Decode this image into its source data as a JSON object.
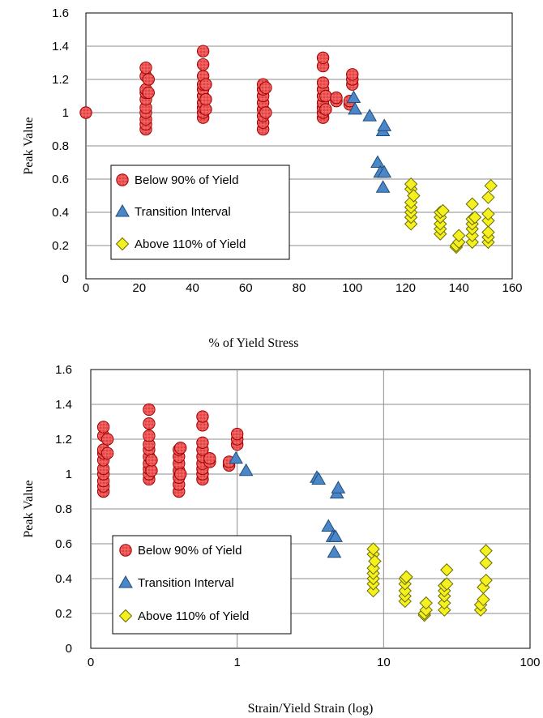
{
  "colors": {
    "below": "#e84040",
    "below_stroke": "#a00000",
    "transition": "#4a86c8",
    "transition_stroke": "#1f4e79",
    "above": "#f5f020",
    "above_stroke": "#6b6b00"
  },
  "chart_data": [
    {
      "type": "scatter",
      "xlabel": "% of Yield Stress",
      "ylabel": "Peak Value",
      "xlim": [
        0,
        160
      ],
      "ylim": [
        0,
        1.6
      ],
      "xticks": [
        "0",
        "20",
        "40",
        "60",
        "80",
        "100",
        "120",
        "140",
        "160"
      ],
      "yticks": [
        "0",
        "0.2",
        "0.4",
        "0.6",
        "0.8",
        "1",
        "1.2",
        "1.4",
        "1.6"
      ],
      "grid": "horizontal",
      "legend_position": "lower-left",
      "series": [
        {
          "name": "Below 90% of Yield",
          "marker": "circle",
          "points": [
            [
              0,
              1.0
            ],
            [
              22.5,
              0.9
            ],
            [
              22.5,
              0.93
            ],
            [
              22.5,
              0.96
            ],
            [
              22.5,
              1.0
            ],
            [
              22.5,
              1.03
            ],
            [
              22.5,
              1.08
            ],
            [
              22.5,
              1.12
            ],
            [
              22.5,
              1.14
            ],
            [
              22.5,
              1.22
            ],
            [
              22.5,
              1.27
            ],
            [
              23.5,
              1.12
            ],
            [
              23.5,
              1.2
            ],
            [
              44,
              0.97
            ],
            [
              44,
              1.0
            ],
            [
              44,
              1.03
            ],
            [
              44,
              1.06
            ],
            [
              44,
              1.1
            ],
            [
              44,
              1.14
            ],
            [
              44,
              1.17
            ],
            [
              44,
              1.22
            ],
            [
              44,
              1.29
            ],
            [
              44,
              1.37
            ],
            [
              45,
              1.02
            ],
            [
              45,
              1.08
            ],
            [
              45,
              1.17
            ],
            [
              66.5,
              0.9
            ],
            [
              66.5,
              0.94
            ],
            [
              66.5,
              0.98
            ],
            [
              66.5,
              1.02
            ],
            [
              66.5,
              1.06
            ],
            [
              66.5,
              1.1
            ],
            [
              66.5,
              1.14
            ],
            [
              66.5,
              1.17
            ],
            [
              67.5,
              1.0
            ],
            [
              67.5,
              1.15
            ],
            [
              89,
              0.97
            ],
            [
              89,
              1.0
            ],
            [
              89,
              1.03
            ],
            [
              89,
              1.06
            ],
            [
              89,
              1.1
            ],
            [
              89,
              1.14
            ],
            [
              89,
              1.18
            ],
            [
              89,
              1.28
            ],
            [
              89,
              1.33
            ],
            [
              90,
              1.02
            ],
            [
              90,
              1.1
            ],
            [
              94,
              1.07
            ],
            [
              94,
              1.09
            ],
            [
              99,
              1.05
            ],
            [
              99,
              1.07
            ],
            [
              100,
              1.17
            ],
            [
              100,
              1.2
            ],
            [
              100,
              1.23
            ]
          ]
        },
        {
          "name": "Transition Interval",
          "marker": "triangle",
          "points": [
            [
              100.5,
              1.09
            ],
            [
              101,
              1.02
            ],
            [
              106.5,
              0.98
            ],
            [
              109.5,
              0.7
            ],
            [
              110.5,
              0.64
            ],
            [
              111.5,
              0.55
            ],
            [
              111.5,
              0.89
            ],
            [
              112,
              0.92
            ],
            [
              112,
              0.64
            ]
          ]
        },
        {
          "name": "Above 110% of Yield",
          "marker": "diamond",
          "points": [
            [
              122,
              0.33
            ],
            [
              122,
              0.37
            ],
            [
              122,
              0.4
            ],
            [
              122,
              0.43
            ],
            [
              122,
              0.46
            ],
            [
              122,
              0.54
            ],
            [
              122,
              0.57
            ],
            [
              123,
              0.5
            ],
            [
              133,
              0.27
            ],
            [
              133,
              0.3
            ],
            [
              133,
              0.33
            ],
            [
              133,
              0.37
            ],
            [
              133,
              0.4
            ],
            [
              134,
              0.41
            ],
            [
              139,
              0.19
            ],
            [
              139,
              0.2
            ],
            [
              140,
              0.22
            ],
            [
              140,
              0.26
            ],
            [
              145,
              0.22
            ],
            [
              145,
              0.26
            ],
            [
              145,
              0.3
            ],
            [
              145,
              0.33
            ],
            [
              145,
              0.36
            ],
            [
              145,
              0.45
            ],
            [
              146,
              0.37
            ],
            [
              151,
              0.22
            ],
            [
              151,
              0.25
            ],
            [
              151,
              0.28
            ],
            [
              151,
              0.35
            ],
            [
              151,
              0.39
            ],
            [
              151,
              0.49
            ],
            [
              152,
              0.56
            ]
          ]
        }
      ]
    },
    {
      "type": "scatter",
      "xlabel": "Strain/Yield Strain (log)",
      "ylabel": "Peak Value",
      "xscale": "log",
      "xlim": [
        0.1,
        100
      ],
      "ylim": [
        0,
        1.6
      ],
      "xticks": [
        "0",
        "1",
        "10",
        "100"
      ],
      "yticks": [
        "0",
        "0.2",
        "0.4",
        "0.6",
        "0.8",
        "1",
        "1.2",
        "1.4",
        "1.6"
      ],
      "grid": "horizontal and vertical major",
      "legend_position": "lower-left",
      "series": [
        {
          "name": "Below 90% of Yield",
          "marker": "circle",
          "points": [
            [
              0.122,
              0.9
            ],
            [
              0.122,
              0.93
            ],
            [
              0.122,
              0.96
            ],
            [
              0.122,
              1.0
            ],
            [
              0.122,
              1.03
            ],
            [
              0.122,
              1.08
            ],
            [
              0.122,
              1.12
            ],
            [
              0.122,
              1.14
            ],
            [
              0.122,
              1.22
            ],
            [
              0.122,
              1.27
            ],
            [
              0.13,
              1.12
            ],
            [
              0.13,
              1.2
            ],
            [
              0.25,
              0.97
            ],
            [
              0.25,
              1.0
            ],
            [
              0.25,
              1.03
            ],
            [
              0.25,
              1.06
            ],
            [
              0.25,
              1.1
            ],
            [
              0.25,
              1.14
            ],
            [
              0.25,
              1.17
            ],
            [
              0.25,
              1.22
            ],
            [
              0.25,
              1.29
            ],
            [
              0.25,
              1.37
            ],
            [
              0.26,
              1.02
            ],
            [
              0.26,
              1.08
            ],
            [
              0.4,
              0.9
            ],
            [
              0.4,
              0.94
            ],
            [
              0.4,
              0.98
            ],
            [
              0.4,
              1.02
            ],
            [
              0.4,
              1.06
            ],
            [
              0.4,
              1.1
            ],
            [
              0.4,
              1.14
            ],
            [
              0.41,
              1.0
            ],
            [
              0.41,
              1.15
            ],
            [
              0.58,
              0.97
            ],
            [
              0.58,
              1.0
            ],
            [
              0.58,
              1.03
            ],
            [
              0.58,
              1.06
            ],
            [
              0.58,
              1.1
            ],
            [
              0.58,
              1.14
            ],
            [
              0.58,
              1.18
            ],
            [
              0.58,
              1.28
            ],
            [
              0.58,
              1.33
            ],
            [
              0.65,
              1.07
            ],
            [
              0.65,
              1.09
            ],
            [
              0.88,
              1.05
            ],
            [
              0.88,
              1.07
            ],
            [
              1.0,
              1.17
            ],
            [
              1.0,
              1.2
            ],
            [
              1.0,
              1.23
            ]
          ]
        },
        {
          "name": "Transition Interval",
          "marker": "triangle",
          "points": [
            [
              0.98,
              1.09
            ],
            [
              1.15,
              1.02
            ],
            [
              3.5,
              0.98
            ],
            [
              3.6,
              0.97
            ],
            [
              4.2,
              0.7
            ],
            [
              4.5,
              0.64
            ],
            [
              4.6,
              0.55
            ],
            [
              4.8,
              0.89
            ],
            [
              4.9,
              0.92
            ],
            [
              4.7,
              0.64
            ]
          ]
        },
        {
          "name": "Above 110% of Yield",
          "marker": "diamond",
          "points": [
            [
              8.5,
              0.33
            ],
            [
              8.5,
              0.37
            ],
            [
              8.5,
              0.4
            ],
            [
              8.5,
              0.43
            ],
            [
              8.5,
              0.46
            ],
            [
              8.5,
              0.54
            ],
            [
              8.5,
              0.57
            ],
            [
              8.7,
              0.5
            ],
            [
              14,
              0.27
            ],
            [
              14,
              0.3
            ],
            [
              14,
              0.33
            ],
            [
              14,
              0.37
            ],
            [
              14,
              0.4
            ],
            [
              14.3,
              0.41
            ],
            [
              19,
              0.19
            ],
            [
              19,
              0.2
            ],
            [
              19.5,
              0.22
            ],
            [
              19.5,
              0.26
            ],
            [
              26,
              0.22
            ],
            [
              26,
              0.26
            ],
            [
              26,
              0.3
            ],
            [
              26,
              0.33
            ],
            [
              26,
              0.36
            ],
            [
              27,
              0.45
            ],
            [
              27,
              0.37
            ],
            [
              46,
              0.22
            ],
            [
              46,
              0.25
            ],
            [
              48,
              0.28
            ],
            [
              48,
              0.35
            ],
            [
              50,
              0.39
            ],
            [
              50,
              0.49
            ],
            [
              50,
              0.56
            ]
          ]
        }
      ]
    }
  ]
}
